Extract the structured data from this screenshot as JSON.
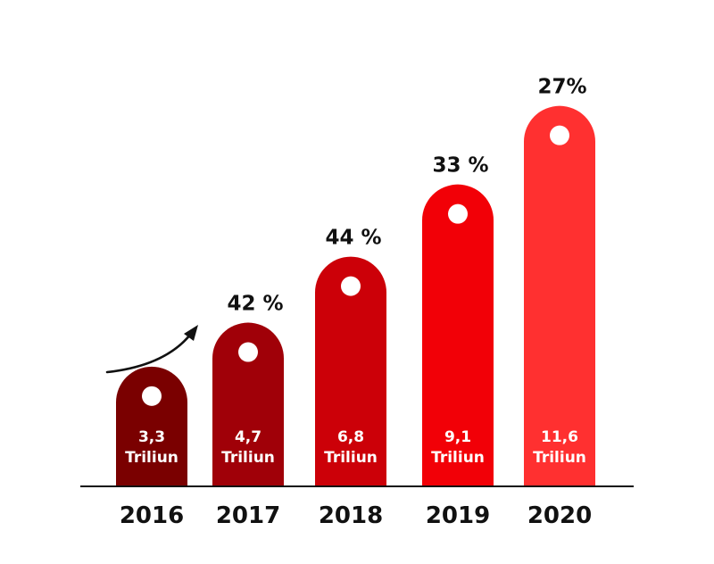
{
  "chart_data": {
    "type": "bar",
    "categories": [
      "2016",
      "2017",
      "2018",
      "2019",
      "2020"
    ],
    "values": [
      3.3,
      4.7,
      6.8,
      9.1,
      11.6
    ],
    "value_labels": [
      {
        "line1": "3,3",
        "line2": "Triliun"
      },
      {
        "line1": "4,7",
        "line2": "Triliun"
      },
      {
        "line1": "6,8",
        "line2": "Triliun"
      },
      {
        "line1": "9,1",
        "line2": "Triliun"
      },
      {
        "line1": "11,6",
        "line2": "Triliun"
      }
    ],
    "growth_labels": [
      "",
      "42 %",
      "44 %",
      "33 %",
      "27%"
    ],
    "colors": [
      "#7a0000",
      "#a00008",
      "#cc0008",
      "#f20007",
      "#ff3030"
    ],
    "axis_color": "#111111",
    "grid": false,
    "legend": "none"
  }
}
